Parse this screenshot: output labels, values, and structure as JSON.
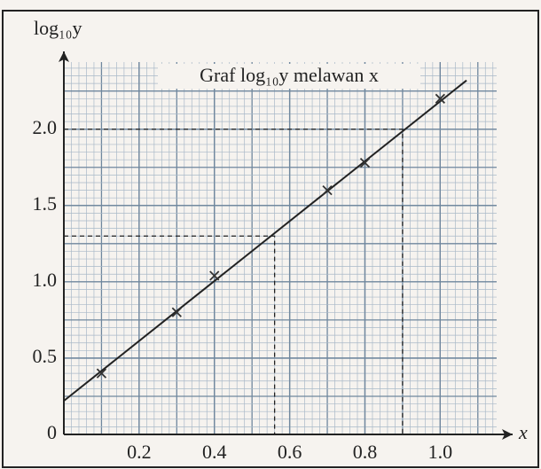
{
  "chart_data": {
    "type": "scatter",
    "title": "Graf log₁₀y melawan x",
    "xlabel": "x",
    "ylabel": "log₁₀y",
    "x": [
      0.1,
      0.3,
      0.4,
      0.7,
      0.8,
      1.0
    ],
    "values": [
      0.4,
      0.8,
      1.04,
      1.6,
      1.78,
      2.2
    ],
    "color": "#333333",
    "fit_line": {
      "x": [
        0,
        1.07
      ],
      "y": [
        0.22,
        2.32
      ]
    },
    "guides": [
      {
        "x": 0.9,
        "y": 2.0
      },
      {
        "x": 0.56,
        "y": 1.3
      }
    ],
    "xlim": [
      0,
      1.15
    ],
    "ylim": [
      0,
      2.44
    ],
    "xticks": [
      0.2,
      0.4,
      0.6,
      0.8,
      {
        "value": 1,
        "label": "1.0"
      }
    ],
    "yticks": [
      0,
      0.5,
      {
        "value": 1,
        "label": "1.0"
      },
      1.5,
      {
        "value": 2,
        "label": "2.0"
      }
    ],
    "grid": true
  }
}
